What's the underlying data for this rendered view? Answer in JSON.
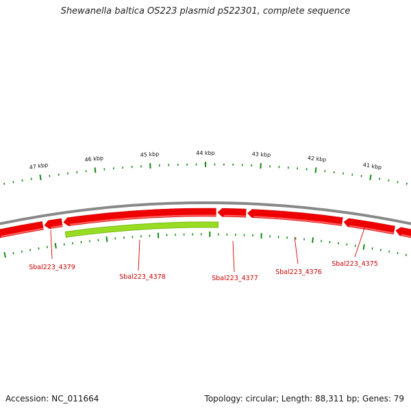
{
  "title": "Shewanella baltica OS223 plasmid pS22301, complete sequence",
  "footer": {
    "accession": "Accession: NC_011664",
    "summary": "Topology: circular; Length: 88,311 bp; Genes: 79"
  },
  "kbp_labels": [
    "47 kbp",
    "46 kbp",
    "45 kbp",
    "44 kbp",
    "43 kbp",
    "42 kbp",
    "41 kbp"
  ],
  "gene_labels": [
    "Sbal223_4379",
    "Sbal223_4378",
    "Sbal223_4377",
    "Sbal223_4376",
    "Sbal223_4375"
  ],
  "colors": {
    "gene": "#ee0000",
    "gene_highlight": "#ff6666",
    "highlight_gene": "#99dd22",
    "backbone": "#888888",
    "tick": "#118811",
    "label": "#cc0000"
  }
}
